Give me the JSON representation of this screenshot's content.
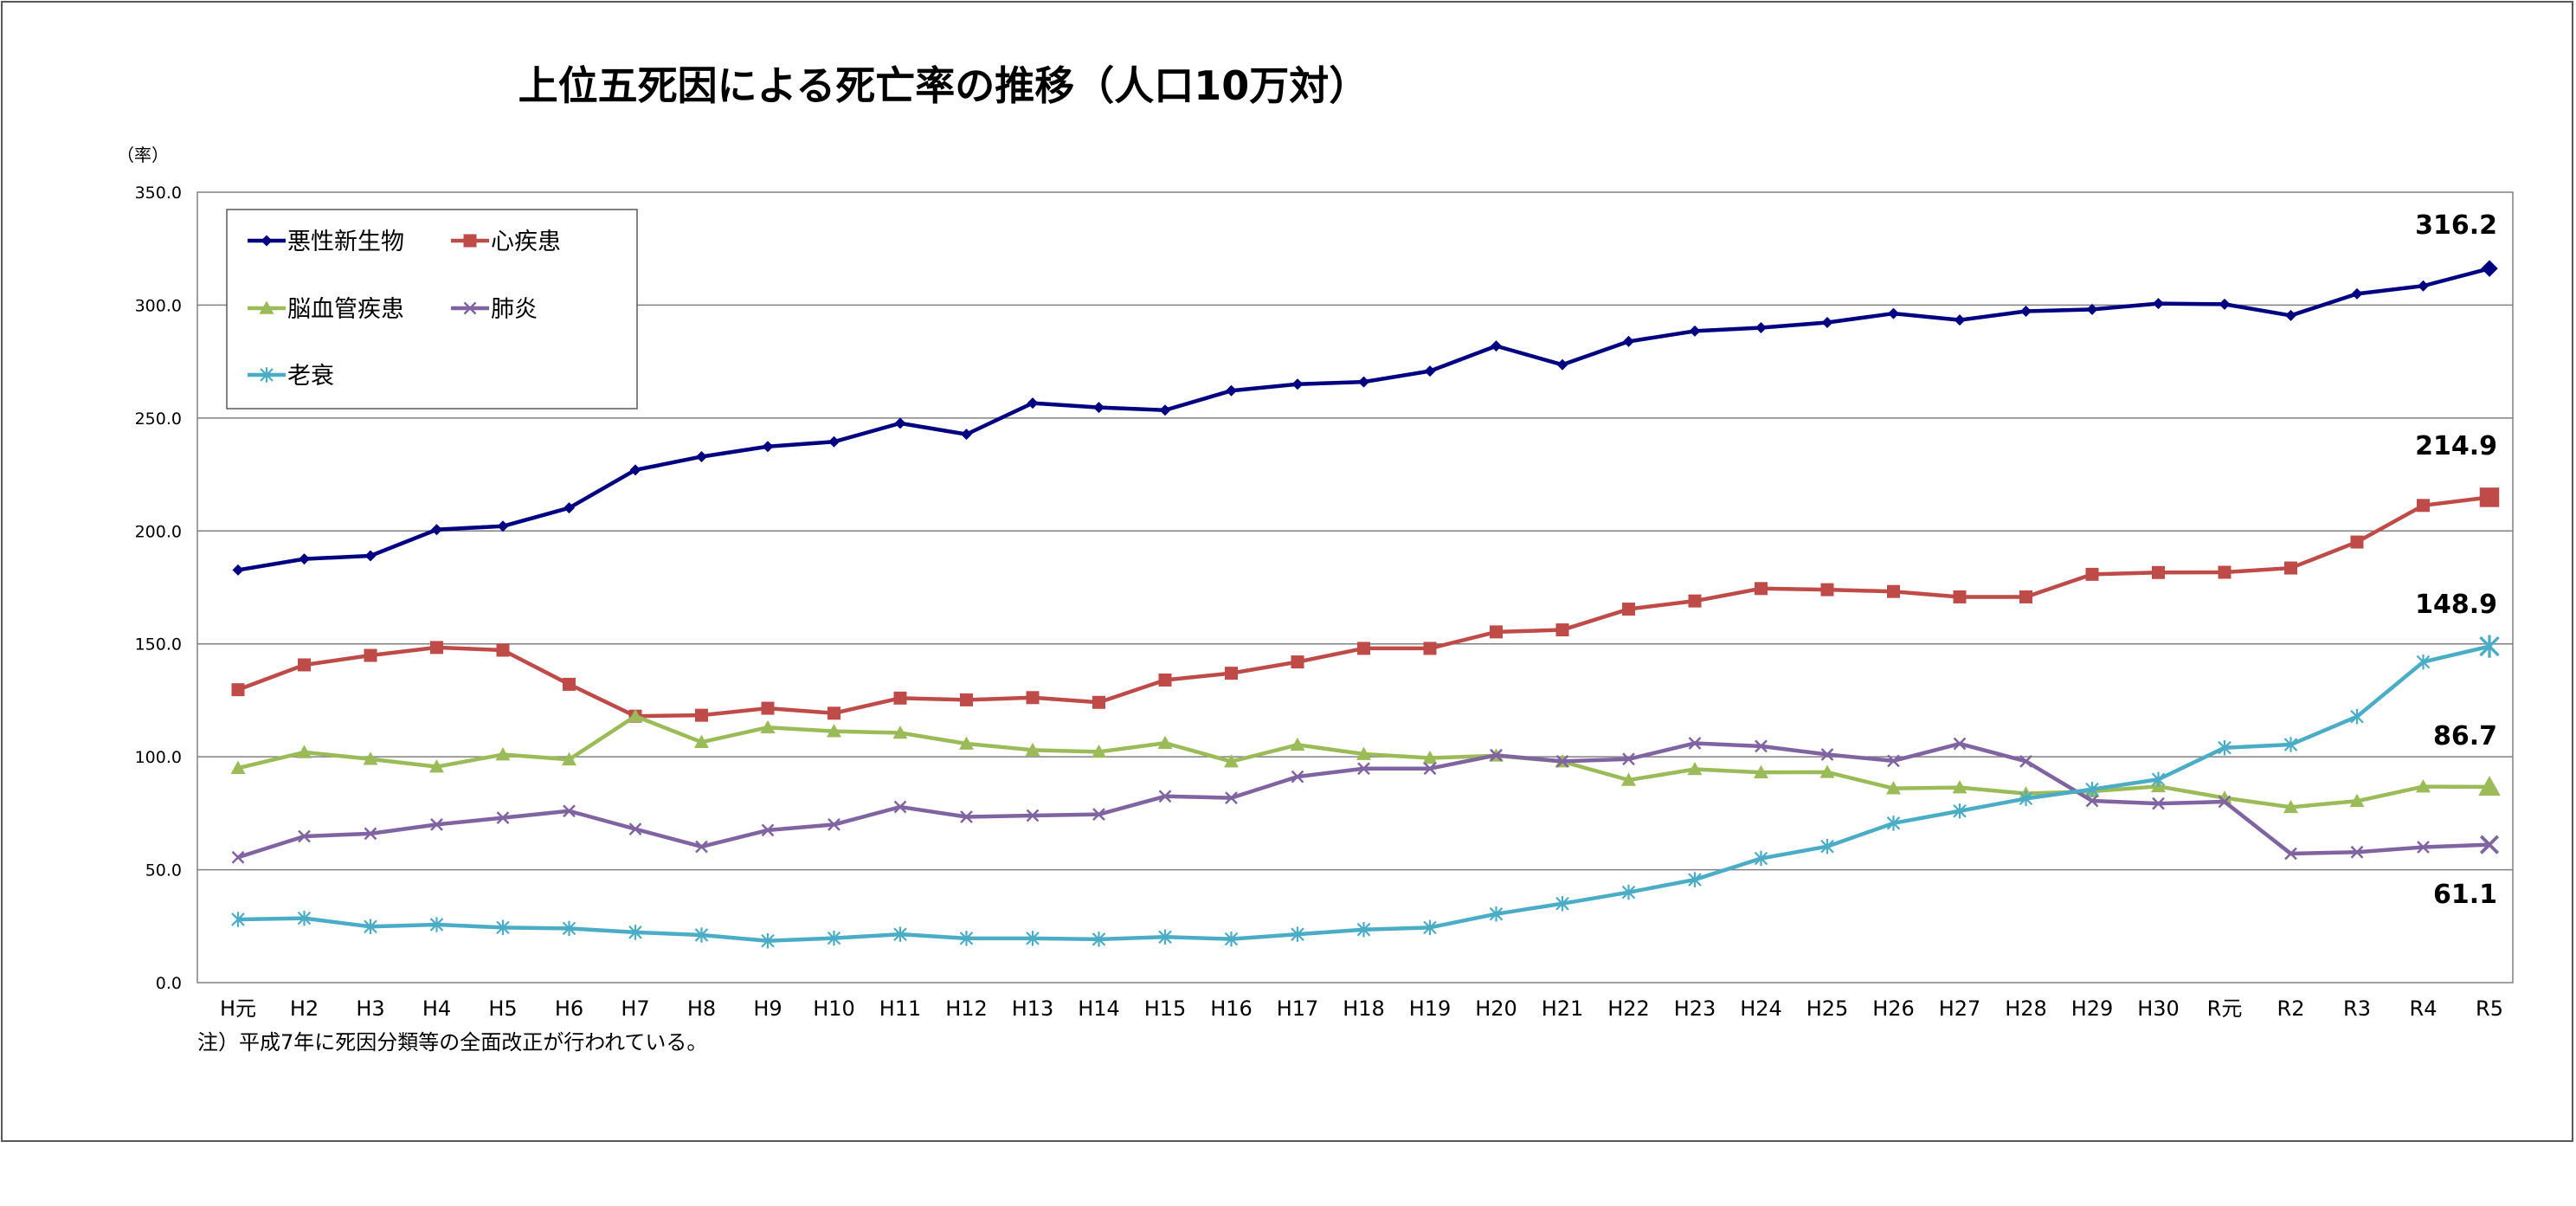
{
  "chart_data": {
    "type": "line",
    "title": "上位五死因による死亡率の推移（人口10万対）",
    "ylabel": "（率）",
    "xlabel": "",
    "ylim": [
      0,
      350
    ],
    "yticks": [
      0,
      50,
      100,
      150,
      200,
      250,
      300,
      350
    ],
    "ytick_labels": [
      "0.0",
      "50.0",
      "100.0",
      "150.0",
      "200.0",
      "250.0",
      "300.0",
      "350.0"
    ],
    "grid": true,
    "legend_position": "top-left",
    "categories": [
      "H元",
      "H2",
      "H3",
      "H4",
      "H5",
      "H6",
      "H7",
      "H8",
      "H9",
      "H10",
      "H11",
      "H12",
      "H13",
      "H14",
      "H15",
      "H16",
      "H17",
      "H18",
      "H19",
      "H20",
      "H21",
      "H22",
      "H23",
      "H24",
      "H25",
      "H26",
      "H27",
      "H28",
      "H29",
      "H30",
      "R元",
      "R2",
      "R3",
      "R4",
      "R5"
    ],
    "series": [
      {
        "name": "悪性新生物",
        "color": "#000080",
        "marker": "diamond",
        "end_label": "316.2",
        "values": [
          182.7,
          187.6,
          189.0,
          200.6,
          202.1,
          210.2,
          227.0,
          232.9,
          237.4,
          239.5,
          247.7,
          242.8,
          256.6,
          254.7,
          253.5,
          262.1,
          265.0,
          266.0,
          270.8,
          281.9,
          273.6,
          283.9,
          288.5,
          290.0,
          292.3,
          296.3,
          293.4,
          297.3,
          298.1,
          300.7,
          300.4,
          295.4,
          305.0,
          308.5,
          316.2
        ]
      },
      {
        "name": "心疾患",
        "color": "#BE4B48",
        "marker": "square",
        "end_label": "214.9",
        "values": [
          129.7,
          140.7,
          144.9,
          148.4,
          147.2,
          132.1,
          118.0,
          118.4,
          121.5,
          119.3,
          126.0,
          125.2,
          126.2,
          124.1,
          134.0,
          137.0,
          142.0,
          148.0,
          148.0,
          155.3,
          156.2,
          165.4,
          169.0,
          174.5,
          174.0,
          173.2,
          170.8,
          170.8,
          180.8,
          181.6,
          181.7,
          183.6,
          195.1,
          211.3,
          214.9
        ]
      },
      {
        "name": "脳血管疾患",
        "color": "#9BBB59",
        "marker": "triangle",
        "end_label": "86.7",
        "values": [
          95.0,
          102.0,
          99.0,
          95.6,
          101.0,
          98.8,
          118.0,
          106.5,
          113.0,
          111.3,
          110.6,
          105.8,
          103.0,
          102.2,
          106.1,
          97.9,
          105.3,
          101.2,
          99.5,
          100.5,
          97.9,
          89.7,
          94.5,
          93.1,
          93.2,
          86.0,
          86.4,
          83.7,
          84.7,
          86.9,
          81.8,
          77.7,
          80.4,
          86.8,
          86.7
        ]
      },
      {
        "name": "肺炎",
        "color": "#8064A2",
        "marker": "x",
        "end_label": "61.1",
        "values": [
          55.5,
          64.8,
          66.0,
          70.0,
          73.0,
          76.0,
          68.0,
          60.2,
          67.5,
          70.0,
          77.8,
          73.4,
          74.0,
          74.5,
          82.5,
          81.8,
          91.2,
          94.8,
          94.8,
          100.7,
          98.0,
          99.0,
          106.0,
          104.7,
          101.0,
          98.2,
          105.8,
          98.0,
          80.5,
          79.3,
          80.1,
          57.1,
          57.8,
          60.0,
          61.1
        ]
      },
      {
        "name": "老衰",
        "color": "#4BACC6",
        "marker": "star",
        "end_label": "148.9",
        "values": [
          28.0,
          28.5,
          24.8,
          25.7,
          24.4,
          24.0,
          22.3,
          21.1,
          18.5,
          19.7,
          21.4,
          19.6,
          19.6,
          19.2,
          20.2,
          19.3,
          21.4,
          23.5,
          24.4,
          30.4,
          35.0,
          40.0,
          45.6,
          55.0,
          60.3,
          70.6,
          76.0,
          81.5,
          85.6,
          90.0,
          104.0,
          105.4,
          117.8,
          142.0,
          148.9
        ]
      }
    ],
    "note": "注）平成7年に死因分類等の全面改正が行われている。"
  }
}
